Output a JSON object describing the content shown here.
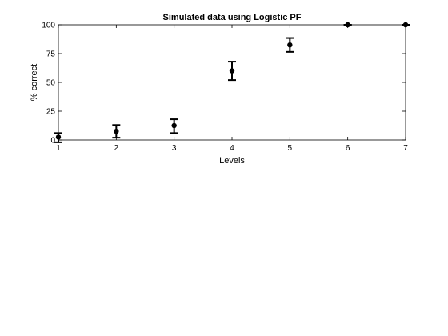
{
  "chart_data": {
    "type": "scatter",
    "title": "Simulated data using Logistic PF",
    "xlabel": "Levels",
    "ylabel": "% correct",
    "xlim": [
      1,
      7
    ],
    "ylim": [
      0,
      100
    ],
    "xticks": [
      "1",
      "2",
      "3",
      "4",
      "5",
      "6",
      "7"
    ],
    "yticks": [
      "0",
      "25",
      "50",
      "75",
      "100"
    ],
    "grid": false,
    "legend": "none",
    "series": [
      {
        "x": [
          1,
          2,
          3,
          4,
          5,
          6,
          7
        ],
        "y": [
          2.5,
          7.5,
          12.5,
          60,
          82.5,
          100,
          100
        ],
        "err_low": [
          -2,
          2,
          6,
          52,
          76.5,
          100,
          100
        ],
        "err_high": [
          6,
          13,
          18,
          68,
          88.5,
          100,
          100
        ],
        "color": "#000000"
      }
    ]
  }
}
